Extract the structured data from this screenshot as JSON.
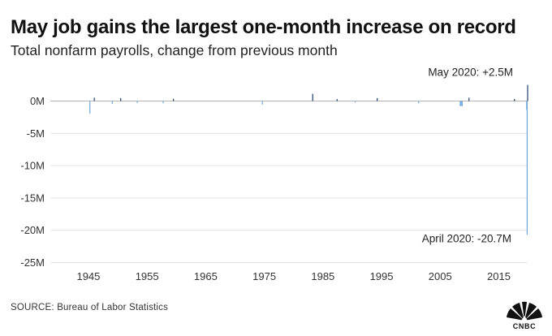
{
  "title": "May job gains the largest one-month increase on record",
  "subtitle": "Total nonfarm payrolls, change from previous month",
  "source": "SOURCE: Bureau of Labor Statistics",
  "logo_text": "CNBC",
  "colors": {
    "positive": "#1c3f6e",
    "negative": "#6fa8dc",
    "grid": "#e3e3e3",
    "axis_text": "#333333"
  },
  "chart_data": {
    "type": "bar",
    "title": "May job gains the largest one-month increase on record",
    "subtitle": "Total nonfarm payrolls, change from previous month",
    "xlabel": "",
    "ylabel": "",
    "unit": "millions of jobs",
    "x_range": [
      "1939-01",
      "2020-05"
    ],
    "ylim": [
      -25,
      2.5
    ],
    "y_ticks": [
      0,
      -5,
      -10,
      -15,
      -20,
      -25
    ],
    "y_tick_labels": [
      "0M",
      "-5M",
      "-10M",
      "-15M",
      "-20M",
      "-25M"
    ],
    "x_ticks": [
      1945,
      1955,
      1965,
      1975,
      1985,
      1995,
      2005,
      2015
    ],
    "x_tick_labels": [
      "1945",
      "1955",
      "1965",
      "1975",
      "1985",
      "1995",
      "2005",
      "2015"
    ],
    "grid": "horizontal",
    "legend": "none",
    "series": [
      {
        "name": "",
        "points": [
          {
            "x": "1945-09",
            "y": -1.96
          },
          {
            "x": "1946-06",
            "y": 0.52
          },
          {
            "x": "1949-07",
            "y": -0.45
          },
          {
            "x": "1950-12",
            "y": 0.45
          },
          {
            "x": "1953-10",
            "y": -0.3
          },
          {
            "x": "1958-03",
            "y": -0.35
          },
          {
            "x": "1959-12",
            "y": 0.35
          },
          {
            "x": "1975-02",
            "y": -0.55
          },
          {
            "x": "1983-09",
            "y": 1.12
          },
          {
            "x": "1987-11",
            "y": 0.3
          },
          {
            "x": "1990-12",
            "y": -0.2
          },
          {
            "x": "1994-09",
            "y": 0.45
          },
          {
            "x": "2001-10",
            "y": -0.33
          },
          {
            "x": "2008-11",
            "y": -0.8
          },
          {
            "x": "2009-01",
            "y": -0.74
          },
          {
            "x": "2009-03",
            "y": -0.8
          },
          {
            "x": "2010-05",
            "y": 0.52
          },
          {
            "x": "2018-02",
            "y": 0.32
          },
          {
            "x": "2020-03",
            "y": -1.37
          },
          {
            "x": "2020-04",
            "y": -20.7
          },
          {
            "x": "2020-05",
            "y": 2.5
          }
        ]
      }
    ],
    "annotations": [
      {
        "x": "2020-05",
        "y": 2.5,
        "text": "May 2020: +2.5M"
      },
      {
        "x": "2020-04",
        "y": -20.7,
        "text": "April 2020: -20.7M"
      }
    ]
  }
}
